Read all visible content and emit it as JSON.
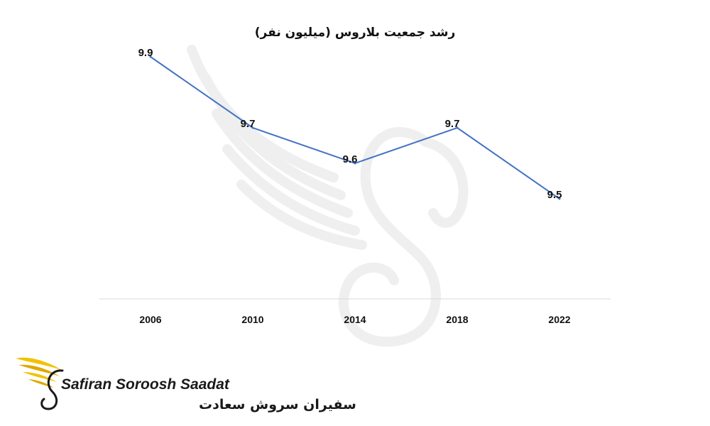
{
  "chart_data": {
    "type": "line",
    "title": "رشد جمعیت بلاروس (میلیون نفر)",
    "categories": [
      "2006",
      "2010",
      "2014",
      "2018",
      "2022"
    ],
    "series": [
      {
        "values": [
          9.9,
          9.7,
          9.6,
          9.7,
          9.5
        ]
      }
    ],
    "data_labels": [
      "9.9",
      "9.7",
      "9.6",
      "9.7",
      "9.5"
    ],
    "ylim": [
      9.0,
      10.0
    ],
    "grid": false,
    "line_color": "#4472C4"
  },
  "brand": {
    "name_en": "Safiran Soroosh Saadat",
    "name_fa": "سفیران سروش سعادت",
    "accent_color": "#F2C200",
    "watermark_icon": "bird-wing-watermark-icon",
    "logo_icon": "golden-wing-logo-icon"
  }
}
